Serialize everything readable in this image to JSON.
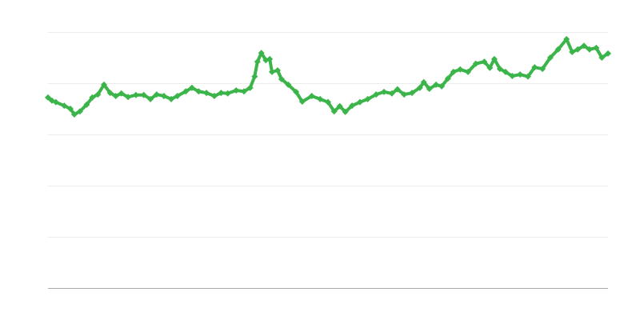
{
  "chart_data": {
    "type": "line",
    "title": "",
    "xlabel": "",
    "ylabel": "",
    "xlim": [
      0,
      100
    ],
    "ylim": [
      0,
      5
    ],
    "grid": true,
    "gridlines_y": [
      1,
      2,
      3,
      4,
      5
    ],
    "marker": "diamond",
    "series": [
      {
        "color": "#3bb54a",
        "x": [
          0,
          0.7,
          1.4,
          2.9,
          4,
          4.7,
          5.7,
          6.9,
          7.9,
          8.9,
          10,
          11.1,
          12.1,
          13.1,
          14.3,
          15.7,
          17.1,
          18.3,
          19.4,
          20.7,
          22,
          23.1,
          24.6,
          25.7,
          26.9,
          28.3,
          29.7,
          30.9,
          32.1,
          33.6,
          35,
          36.1,
          36.9,
          37.4,
          38.1,
          38.9,
          39.6,
          40,
          41,
          41.7,
          42.9,
          44.3,
          45.4,
          47.1,
          48.6,
          50,
          51.1,
          52.1,
          53.1,
          54.3,
          55.7,
          57.1,
          58.6,
          60,
          61.4,
          62.4,
          63.6,
          65,
          66.4,
          67.1,
          68.1,
          69.3,
          70.3,
          71.4,
          72.4,
          73.6,
          75,
          76.4,
          77.9,
          78.9,
          79.7,
          80.7,
          81.7,
          82.9,
          84.3,
          85.7,
          86.9,
          88.3,
          89.7,
          91.1,
          92.6,
          93.6,
          94.6,
          95.7,
          96.7,
          97.9,
          98.9,
          100
        ],
        "y": [
          3.72,
          3.66,
          3.63,
          3.56,
          3.5,
          3.39,
          3.45,
          3.58,
          3.72,
          3.78,
          3.97,
          3.81,
          3.75,
          3.8,
          3.73,
          3.77,
          3.77,
          3.69,
          3.78,
          3.75,
          3.69,
          3.75,
          3.84,
          3.91,
          3.84,
          3.81,
          3.75,
          3.81,
          3.8,
          3.86,
          3.84,
          3.91,
          4.13,
          4.42,
          4.59,
          4.45,
          4.47,
          4.22,
          4.25,
          4.08,
          3.97,
          3.83,
          3.64,
          3.75,
          3.69,
          3.63,
          3.45,
          3.55,
          3.44,
          3.56,
          3.63,
          3.69,
          3.78,
          3.83,
          3.8,
          3.88,
          3.78,
          3.81,
          3.91,
          4.02,
          3.89,
          3.97,
          3.94,
          4.09,
          4.22,
          4.27,
          4.22,
          4.38,
          4.42,
          4.3,
          4.47,
          4.28,
          4.22,
          4.14,
          4.17,
          4.13,
          4.31,
          4.28,
          4.5,
          4.66,
          4.86,
          4.61,
          4.66,
          4.73,
          4.66,
          4.69,
          4.5,
          4.58
        ]
      }
    ]
  }
}
